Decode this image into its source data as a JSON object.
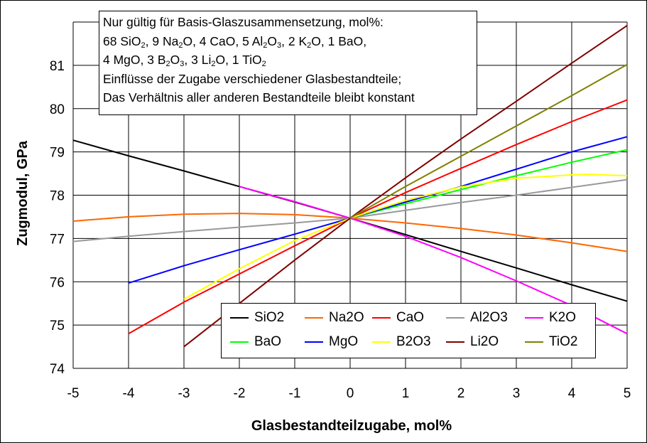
{
  "chart_data": {
    "type": "line",
    "xlabel": "Glasbestandteilzugabe, mol%",
    "ylabel": "Zugmodul, GPa",
    "xlim": [
      -5,
      5
    ],
    "ylim": [
      74,
      82
    ],
    "x_ticks": [
      "-5",
      "-4",
      "-3",
      "-2",
      "-1",
      "0",
      "1",
      "2",
      "3",
      "4",
      "5"
    ],
    "y_ticks": [
      "74",
      "75",
      "76",
      "77",
      "78",
      "79",
      "80",
      "81"
    ],
    "grid": true,
    "legend_position": "bottom-right",
    "series": [
      {
        "name": "SiO2",
        "color": "#000000",
        "x": [
          -5,
          -4,
          -3,
          -2,
          -1,
          0,
          1,
          2,
          3,
          4,
          5
        ],
        "y": [
          79.27,
          78.91,
          78.56,
          78.2,
          77.84,
          77.47,
          77.09,
          76.7,
          76.32,
          75.93,
          75.55
        ]
      },
      {
        "name": "Na2O",
        "color": "#ff6600",
        "x": [
          -5,
          -4,
          -3,
          -2,
          -1,
          0,
          1,
          2,
          3,
          4,
          5
        ],
        "y": [
          77.4,
          77.5,
          77.56,
          77.58,
          77.55,
          77.47,
          77.36,
          77.23,
          77.08,
          76.9,
          76.7
        ]
      },
      {
        "name": "CaO",
        "color": "#ff0000",
        "x": [
          -4,
          -3,
          -2,
          -1,
          0,
          1,
          2,
          3,
          4,
          5
        ],
        "y": [
          74.8,
          75.53,
          76.18,
          76.83,
          77.47,
          78.06,
          78.62,
          79.17,
          79.7,
          80.2
        ]
      },
      {
        "name": "Al2O3",
        "color": "#999999",
        "x": [
          -5,
          -4,
          -3,
          -2,
          -1,
          0,
          1,
          2,
          3,
          4,
          5
        ],
        "y": [
          76.93,
          77.05,
          77.16,
          77.26,
          77.36,
          77.47,
          77.65,
          77.83,
          78.0,
          78.18,
          78.36
        ]
      },
      {
        "name": "K2O",
        "color": "#ff00ff",
        "x": [
          -2,
          -1,
          0,
          1,
          2,
          3,
          4,
          5
        ],
        "y": [
          78.2,
          77.85,
          77.47,
          77.05,
          76.56,
          76.02,
          75.45,
          74.8
        ]
      },
      {
        "name": "BaO",
        "color": "#00ff00",
        "x": [
          0,
          1,
          2,
          3,
          4,
          5
        ],
        "y": [
          77.47,
          77.8,
          78.13,
          78.45,
          78.76,
          79.05
        ]
      },
      {
        "name": "MgO",
        "color": "#0000ff",
        "x": [
          -4,
          -3,
          -2,
          -1,
          0,
          1,
          2,
          3,
          4,
          5
        ],
        "y": [
          75.97,
          76.37,
          76.74,
          77.1,
          77.47,
          77.84,
          78.2,
          78.6,
          79.0,
          79.35
        ]
      },
      {
        "name": "B2O3",
        "color": "#ffff00",
        "x": [
          -3,
          -2,
          -1,
          0,
          1,
          2,
          3,
          4,
          4.3,
          5
        ],
        "y": [
          75.6,
          76.3,
          76.95,
          77.47,
          77.88,
          78.19,
          78.39,
          78.47,
          78.48,
          78.45
        ]
      },
      {
        "name": "Li2O",
        "color": "#800000",
        "x": [
          -3,
          -2,
          -1,
          0,
          1,
          2,
          3,
          4,
          5
        ],
        "y": [
          74.5,
          75.5,
          76.5,
          77.47,
          78.4,
          79.3,
          80.17,
          81.05,
          81.92
        ]
      },
      {
        "name": "TiO2",
        "color": "#808000",
        "x": [
          0,
          1,
          2,
          3,
          4,
          5
        ],
        "y": [
          77.47,
          78.2,
          78.9,
          79.6,
          80.3,
          81.02
        ]
      }
    ]
  },
  "note": {
    "line1": "Nur gültig für Basis-Glaszusammensetzung, mol%:",
    "line2_parts": [
      {
        "text": "68 SiO",
        "sub": "2"
      },
      {
        "text": ", 9 Na",
        "sub": ""
      },
      {
        "text": "2",
        "sub": "2"
      }
    ],
    "line2": {
      "a": "68 SiO",
      "a_sub": "2",
      "b": ", 9 Na",
      "b_sub": "2",
      "c": "O, 4 CaO, 5 Al",
      "c_sub": "2",
      "d": "O",
      "d_sub": "3",
      "e": ", 2 K",
      "e_sub": "2",
      "f": "O, 1 BaO,"
    },
    "line3": {
      "a": "4 MgO, 3 B",
      "a_sub": "2",
      "b": "O",
      "b_sub": "3",
      "c": ", 3 Li",
      "c_sub": "2",
      "d": "O, 1 TiO",
      "d_sub": "2"
    },
    "line4": "Einflüsse der Zugabe verschiedener Glasbestandteile;",
    "line5": "Das Verhältnis aller anderen Bestandteile bleibt konstant"
  }
}
